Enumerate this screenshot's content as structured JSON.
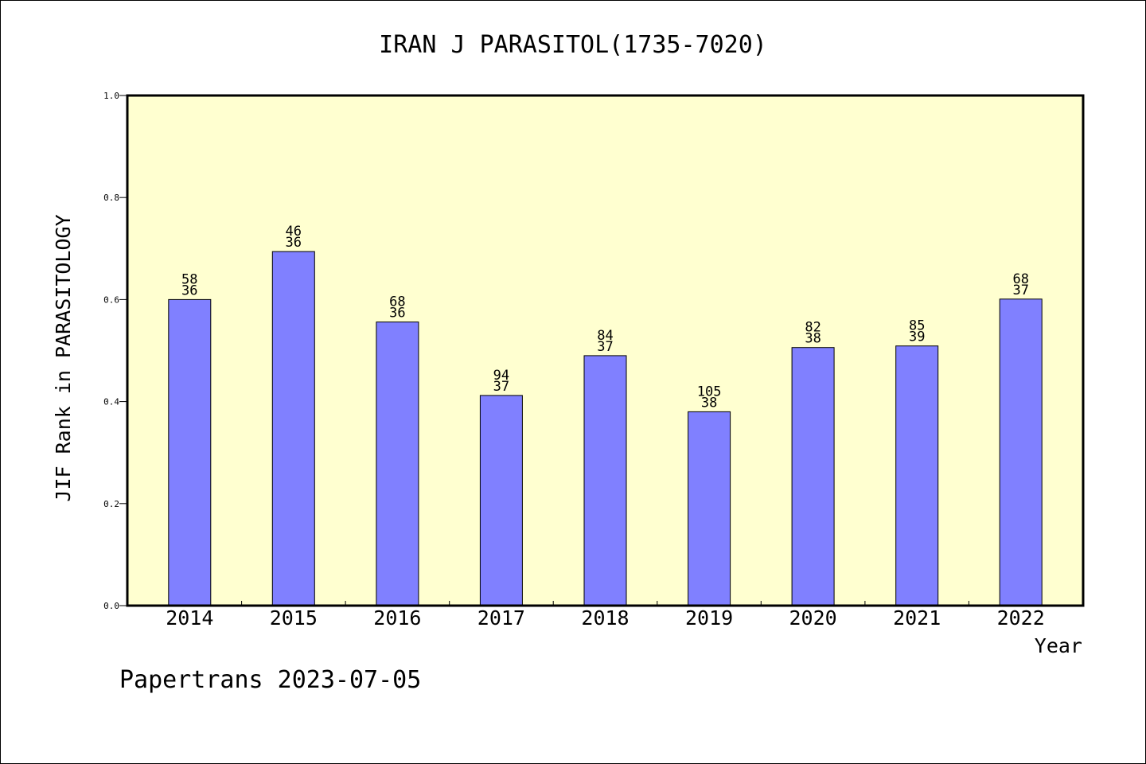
{
  "chart_data": {
    "type": "bar",
    "title": "IRAN J PARASITOL(1735-7020)",
    "ylabel": "JIF Rank in PARASITOLOGY",
    "xlabel": "Year",
    "ylim": [
      0,
      1.0
    ],
    "yticks": [
      "0.0",
      "0.2",
      "0.4",
      "0.6",
      "0.8",
      "1.0"
    ],
    "categories": [
      "2014",
      "2015",
      "2016",
      "2017",
      "2018",
      "2019",
      "2020",
      "2021",
      "2022"
    ],
    "values": [
      0.6,
      0.694,
      0.556,
      0.412,
      0.49,
      0.38,
      0.506,
      0.509,
      0.601
    ],
    "rank_labels": [
      "58",
      "46",
      "68",
      "94",
      "84",
      "105",
      "82",
      "85",
      "68"
    ],
    "total_labels": [
      "36",
      "36",
      "36",
      "37",
      "37",
      "38",
      "38",
      "39",
      "37"
    ],
    "grid": false,
    "colors": {
      "bar": "#8080ff",
      "plot_bg": "#ffffd0"
    }
  },
  "footer": "Papertrans 2023-07-05"
}
